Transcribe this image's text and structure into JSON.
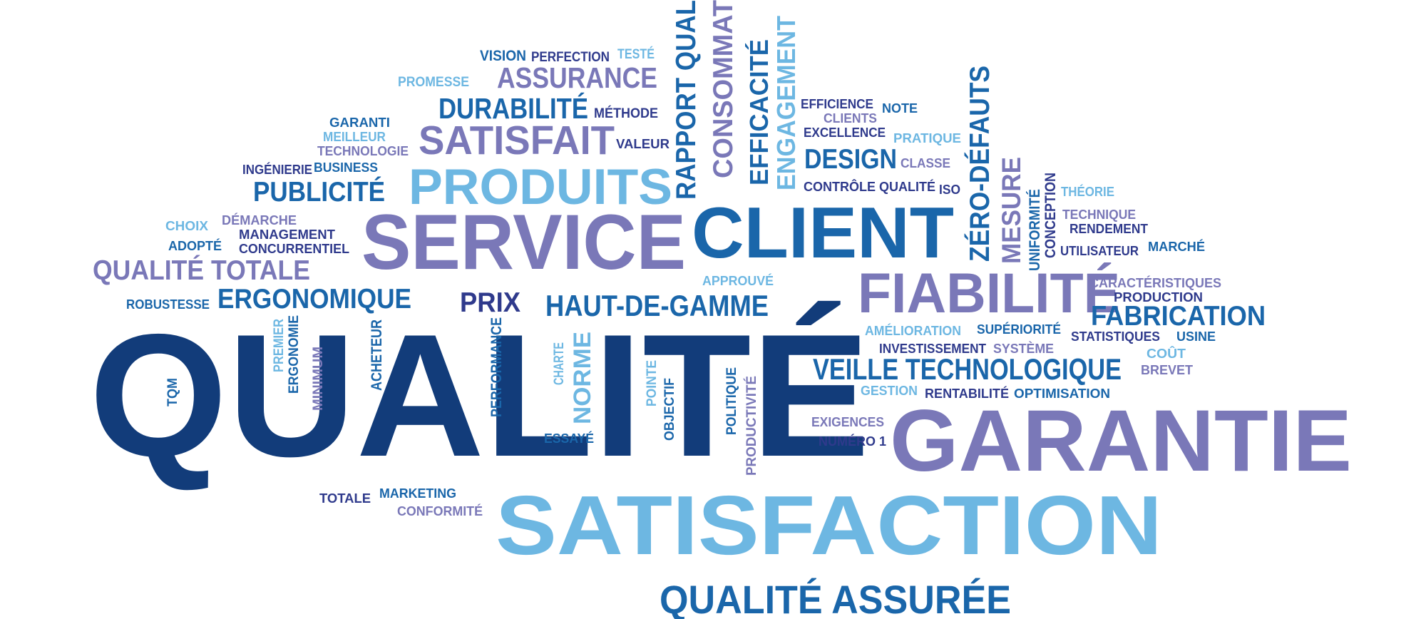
{
  "palette": {
    "navy": "#123c7a",
    "blue": "#1a66aa",
    "sky": "#6db7e2",
    "purple": "#7a78b8",
    "indigo": "#2f3a8c",
    "background": "#ffffff"
  },
  "words": [
    {
      "text": "QUALITÉ",
      "color": "navy"
    },
    {
      "text": "SATISFACTION",
      "color": "sky"
    },
    {
      "text": "GARANTIE",
      "color": "purple"
    },
    {
      "text": "SERVICE",
      "color": "purple"
    },
    {
      "text": "CLIENT",
      "color": "blue"
    },
    {
      "text": "FIABILITÉ",
      "color": "purple"
    },
    {
      "text": "PRODUITS",
      "color": "sky"
    },
    {
      "text": "QUALITÉ ASSURÉE",
      "color": "blue"
    },
    {
      "text": "SATISFAIT",
      "color": "purple"
    },
    {
      "text": "VEILLE TECHNOLOGIQUE",
      "color": "blue"
    },
    {
      "text": "HAUT-DE-GAMME",
      "color": "blue"
    },
    {
      "text": "DURABILITÉ",
      "color": "blue"
    },
    {
      "text": "ASSURANCE",
      "color": "purple"
    },
    {
      "text": "ERGONOMIQUE",
      "color": "blue"
    },
    {
      "text": "QUALITÉ TOTALE",
      "color": "purple"
    },
    {
      "text": "PUBLICITÉ",
      "color": "blue"
    },
    {
      "text": "DESIGN",
      "color": "blue"
    },
    {
      "text": "FABRICATION",
      "color": "blue"
    },
    {
      "text": "PRIX",
      "color": "indigo"
    },
    {
      "text": "RAPPORT QUAL",
      "color": "blue",
      "vertical": true
    },
    {
      "text": "CONSOMMAT",
      "color": "purple",
      "vertical": true
    },
    {
      "text": "EFFICACITÉ",
      "color": "blue",
      "vertical": true
    },
    {
      "text": "ENGAGEMENT",
      "color": "sky",
      "vertical": true
    },
    {
      "text": "ZÉRO-DÉFAUTS",
      "color": "blue",
      "vertical": true
    },
    {
      "text": "MESURE",
      "color": "purple",
      "vertical": true
    },
    {
      "text": "UNIFORMITÉ",
      "color": "blue",
      "vertical": true
    },
    {
      "text": "CONCEPTION",
      "color": "indigo",
      "vertical": true
    },
    {
      "text": "NORME",
      "color": "sky",
      "vertical": true
    },
    {
      "text": "PERFORMANCE",
      "color": "blue",
      "vertical": true
    },
    {
      "text": "CHARTE",
      "color": "sky",
      "vertical": true
    },
    {
      "text": "ACHETEUR",
      "color": "blue",
      "vertical": true
    },
    {
      "text": "MINIMUM",
      "color": "purple",
      "vertical": true
    },
    {
      "text": "ERGONOMIE",
      "color": "blue",
      "vertical": true
    },
    {
      "text": "PREMIER",
      "color": "sky",
      "vertical": true
    },
    {
      "text": "TQM",
      "color": "blue",
      "vertical": true
    },
    {
      "text": "POINTE",
      "color": "sky",
      "vertical": true
    },
    {
      "text": "OBJECTIF",
      "color": "blue",
      "vertical": true
    },
    {
      "text": "POLITIQUE",
      "color": "blue",
      "vertical": true
    },
    {
      "text": "PRODUCTIVITÉ",
      "color": "purple",
      "vertical": true
    },
    {
      "text": "VISION",
      "color": "blue"
    },
    {
      "text": "PERFECTION",
      "color": "indigo"
    },
    {
      "text": "TESTÉ",
      "color": "sky"
    },
    {
      "text": "PROMESSE",
      "color": "sky"
    },
    {
      "text": "GARANTI",
      "color": "blue"
    },
    {
      "text": "MÉTHODE",
      "color": "indigo"
    },
    {
      "text": "MEILLEUR",
      "color": "sky"
    },
    {
      "text": "TECHNOLOGIE",
      "color": "purple"
    },
    {
      "text": "VALEUR",
      "color": "indigo"
    },
    {
      "text": "INGÉNIERIE",
      "color": "indigo"
    },
    {
      "text": "BUSINESS",
      "color": "blue"
    },
    {
      "text": "CHOIX",
      "color": "sky"
    },
    {
      "text": "DÉMARCHE",
      "color": "purple"
    },
    {
      "text": "MANAGEMENT",
      "color": "indigo"
    },
    {
      "text": "ADOPTÉ",
      "color": "blue"
    },
    {
      "text": "CONCURRENTIEL",
      "color": "indigo"
    },
    {
      "text": "ROBUSTESSE",
      "color": "blue"
    },
    {
      "text": "APPROUVÉ",
      "color": "sky"
    },
    {
      "text": "EFFICIENCE",
      "color": "indigo"
    },
    {
      "text": "NOTE",
      "color": "blue"
    },
    {
      "text": "CLIENTS",
      "color": "purple"
    },
    {
      "text": "EXCELLENCE",
      "color": "indigo"
    },
    {
      "text": "PRATIQUE",
      "color": "sky"
    },
    {
      "text": "CLASSE",
      "color": "purple"
    },
    {
      "text": "CONTRÔLE QUALITÉ",
      "color": "indigo"
    },
    {
      "text": "ISO",
      "color": "indigo"
    },
    {
      "text": "THÉORIE",
      "color": "sky"
    },
    {
      "text": "TECHNIQUE",
      "color": "purple"
    },
    {
      "text": "RENDEMENT",
      "color": "indigo"
    },
    {
      "text": "UTILISATEUR",
      "color": "indigo"
    },
    {
      "text": "MARCHÉ",
      "color": "blue"
    },
    {
      "text": "CARACTÉRISTIQUES",
      "color": "purple"
    },
    {
      "text": "PRODUCTION",
      "color": "indigo"
    },
    {
      "text": "AMÉLIORATION",
      "color": "sky"
    },
    {
      "text": "SUPÉRIORITÉ",
      "color": "blue"
    },
    {
      "text": "STATISTIQUES",
      "color": "indigo"
    },
    {
      "text": "USINE",
      "color": "blue"
    },
    {
      "text": "INVESTISSEMENT",
      "color": "indigo"
    },
    {
      "text": "SYSTÈME",
      "color": "purple"
    },
    {
      "text": "COÛT",
      "color": "sky"
    },
    {
      "text": "BREVET",
      "color": "purple"
    },
    {
      "text": "GESTION",
      "color": "sky"
    },
    {
      "text": "RENTABILITÉ",
      "color": "indigo"
    },
    {
      "text": "OPTIMISATION",
      "color": "blue"
    },
    {
      "text": "EXIGENCES",
      "color": "purple"
    },
    {
      "text": "NUMÉRO 1",
      "color": "indigo"
    },
    {
      "text": "ESSAYÉ",
      "color": "blue"
    },
    {
      "text": "TOTALE",
      "color": "indigo"
    },
    {
      "text": "MARKETING",
      "color": "blue"
    },
    {
      "text": "CONFORMITÉ",
      "color": "purple"
    }
  ]
}
